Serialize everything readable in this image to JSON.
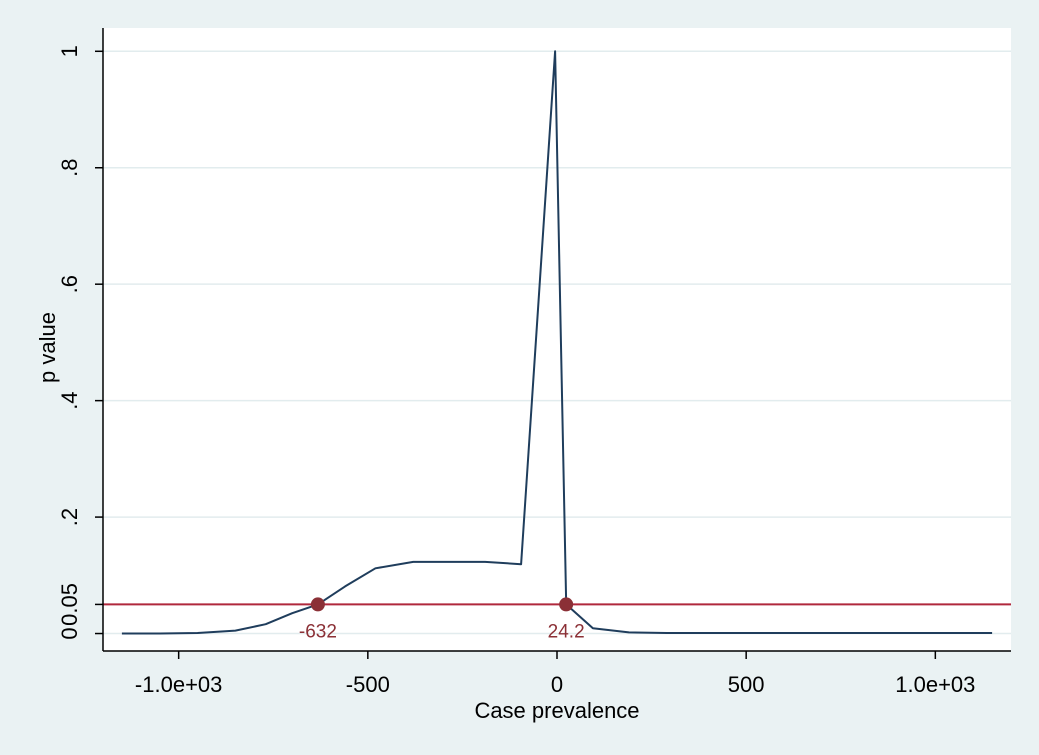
{
  "chart_data": {
    "type": "line",
    "title": "",
    "xlabel": "Case prevalence",
    "ylabel": "p value",
    "xlim": [
      -1200,
      1200
    ],
    "ylim": [
      -0.03,
      1.04
    ],
    "grid": true,
    "legend": "none",
    "x_ticks": [
      {
        "value": -1000,
        "label": "-1.0e+03"
      },
      {
        "value": -500,
        "label": "-500"
      },
      {
        "value": 0,
        "label": "0"
      },
      {
        "value": 500,
        "label": "500"
      },
      {
        "value": 1000,
        "label": "1.0e+03"
      }
    ],
    "y_ticks": [
      {
        "value": 0,
        "label": "0"
      },
      {
        "value": 0.05,
        "label": "0.05"
      },
      {
        "value": 0.2,
        "label": ".2"
      },
      {
        "value": 0.4,
        "label": ".4"
      },
      {
        "value": 0.6,
        "label": ".6"
      },
      {
        "value": 0.8,
        "label": ".8"
      },
      {
        "value": 1,
        "label": "1"
      }
    ],
    "series": [
      {
        "color": "#1f3d5c",
        "x": [
          -1150,
          -1050,
          -950,
          -850,
          -770,
          -700,
          -632,
          -560,
          -480,
          -380,
          -280,
          -190,
          -95,
          -5,
          24.2,
          95,
          190,
          290,
          400,
          500,
          600,
          700,
          800,
          900,
          1000,
          1100,
          1150
        ],
        "y": [
          0,
          0,
          0.001,
          0.005,
          0.016,
          0.035,
          0.05,
          0.081,
          0.112,
          0.123,
          0.123,
          0.123,
          0.119,
          1,
          0.05,
          0.009,
          0.002,
          0.001,
          0.001,
          0.001,
          0.001,
          0.001,
          0.001,
          0.001,
          0.001,
          0.001,
          0.001
        ]
      }
    ],
    "reference_line": {
      "y": 0.05,
      "color": "#b0283c"
    },
    "markers": [
      {
        "x": -632,
        "y": 0.05,
        "label": "-632",
        "color": "#8b3036"
      },
      {
        "x": 24.2,
        "y": 0.05,
        "label": "24.2",
        "color": "#8b3036"
      }
    ],
    "colors": {
      "background": "#eaf2f3",
      "plot_area": "#ffffff",
      "grid": "#e2ecee",
      "axis": "#000000"
    }
  }
}
